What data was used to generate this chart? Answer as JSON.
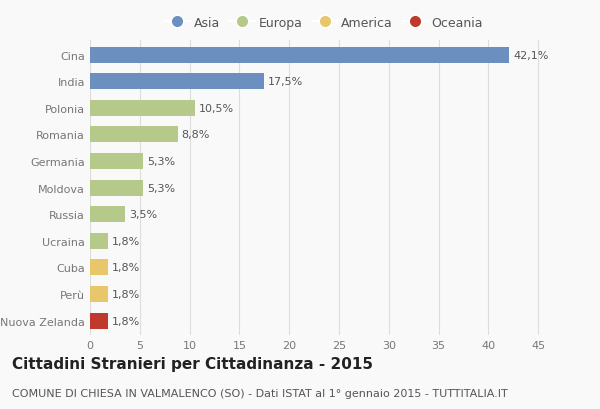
{
  "countries": [
    "Cina",
    "India",
    "Polonia",
    "Romania",
    "Germania",
    "Moldova",
    "Russia",
    "Ucraina",
    "Cuba",
    "Perù",
    "Nuova Zelanda"
  ],
  "values": [
    42.1,
    17.5,
    10.5,
    8.8,
    5.3,
    5.3,
    3.5,
    1.8,
    1.8,
    1.8,
    1.8
  ],
  "labels": [
    "42,1%",
    "17,5%",
    "10,5%",
    "8,8%",
    "5,3%",
    "5,3%",
    "3,5%",
    "1,8%",
    "1,8%",
    "1,8%",
    "1,8%"
  ],
  "colors": [
    "#6b8fbf",
    "#6b8fbf",
    "#b5c98a",
    "#b5c98a",
    "#b5c98a",
    "#b5c98a",
    "#b5c98a",
    "#b5c98a",
    "#e8c76a",
    "#e8c76a",
    "#c0392b"
  ],
  "legend_labels": [
    "Asia",
    "Europa",
    "America",
    "Oceania"
  ],
  "legend_colors": [
    "#6b8fbf",
    "#b5c98a",
    "#e8c76a",
    "#c0392b"
  ],
  "xlim": [
    0,
    47
  ],
  "xticks": [
    0,
    5,
    10,
    15,
    20,
    25,
    30,
    35,
    40,
    45
  ],
  "title": "Cittadini Stranieri per Cittadinanza - 2015",
  "subtitle": "COMUNE DI CHIESA IN VALMALENCO (SO) - Dati ISTAT al 1° gennaio 2015 - TUTTITALIA.IT",
  "background_color": "#f9f9f9",
  "bar_height": 0.6,
  "title_fontsize": 11,
  "subtitle_fontsize": 8,
  "tick_fontsize": 8,
  "label_fontsize": 8,
  "legend_fontsize": 9,
  "grid_color": "#dddddd"
}
